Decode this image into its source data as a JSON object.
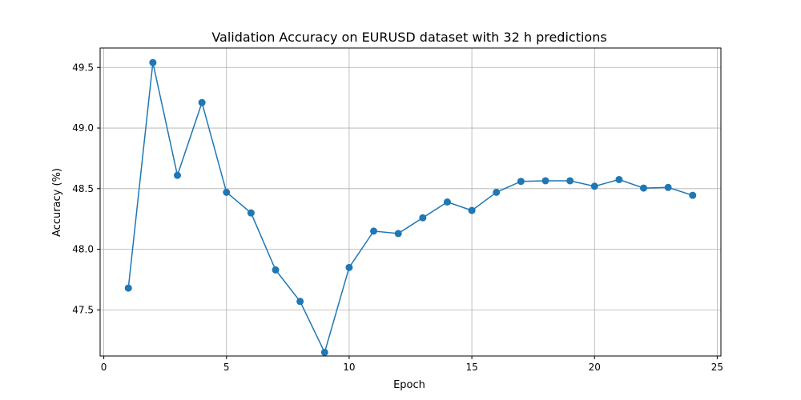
{
  "chart_data": {
    "type": "line",
    "title": "Validation Accuracy on EURUSD dataset with 32 h predictions",
    "xlabel": "Epoch",
    "ylabel": "Accuracy (%)",
    "x": [
      1,
      2,
      3,
      4,
      5,
      6,
      7,
      8,
      9,
      10,
      11,
      12,
      13,
      14,
      15,
      16,
      17,
      18,
      19,
      20,
      21,
      22,
      23,
      24
    ],
    "series": [
      {
        "values": [
          47.68,
          49.54,
          48.61,
          49.21,
          48.47,
          48.3,
          47.83,
          47.57,
          47.15,
          47.85,
          48.15,
          48.13,
          48.26,
          48.39,
          48.32,
          48.47,
          48.56,
          48.565,
          48.565,
          48.52,
          48.575,
          48.505,
          48.51,
          48.445
        ],
        "color": "#1f77b4"
      }
    ],
    "xlim": [
      -0.15,
      25.15
    ],
    "ylim": [
      47.12,
      49.66
    ],
    "xticks": [
      0,
      5,
      10,
      15,
      20,
      25
    ],
    "xtick_labels": [
      "0",
      "5",
      "10",
      "15",
      "20",
      "25"
    ],
    "yticks": [
      47.5,
      48.0,
      48.5,
      49.0,
      49.5
    ],
    "ytick_labels": [
      "47.5",
      "48.0",
      "48.5",
      "49.0",
      "49.5"
    ],
    "grid": true,
    "marker": "circle"
  }
}
